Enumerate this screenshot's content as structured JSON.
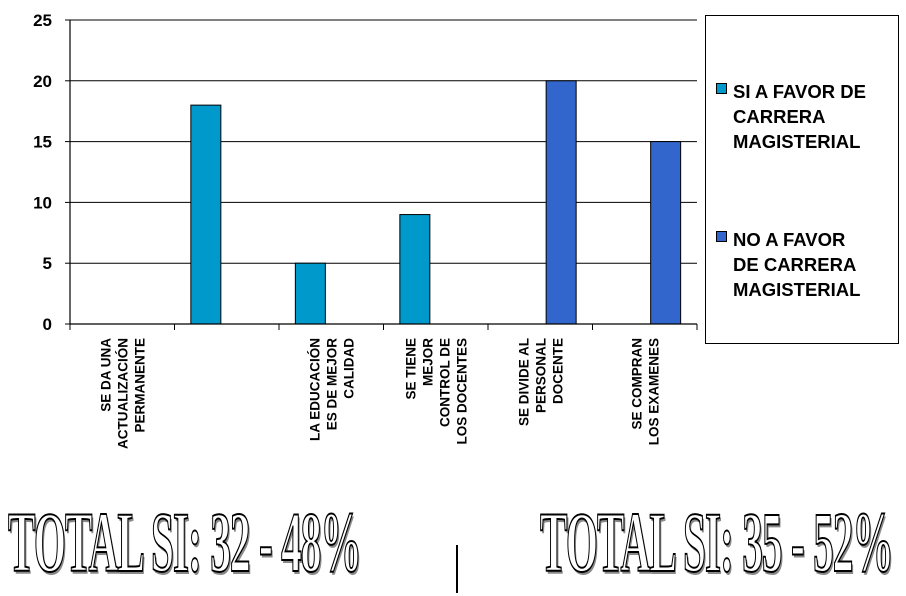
{
  "chart_data": {
    "type": "bar",
    "ylim": [
      0,
      25
    ],
    "yticks": [
      "0",
      "5",
      "10",
      "15",
      "20",
      "25"
    ],
    "categories": [
      [
        "SE DA UNA",
        "ACTUALIZACIÓN",
        "PERMANENTE"
      ],
      [],
      [
        "LA EDUCACIÓN",
        "ES DE MEJOR",
        "CALIDAD"
      ],
      [
        "SE TIENE",
        "MEJOR",
        "CONTROL DE",
        "LOS DOCENTES"
      ],
      [
        "SE DIVIDE AL",
        "PERSONAL",
        "DOCENTE"
      ],
      [
        "SE COMPRAN",
        "LOS EXAMENES"
      ]
    ],
    "series": [
      {
        "name": "SI A FAVOR DE CARRERA MAGISTERIAL",
        "color": "#0099cc",
        "values": [
          0,
          18,
          5,
          9,
          0,
          0
        ]
      },
      {
        "name": "NO A FAVOR DE CARRERA MAGISTERIAL",
        "color": "#3366cc",
        "values": [
          0,
          0,
          0,
          0,
          20,
          15
        ]
      }
    ],
    "legend": "right",
    "grid": true
  },
  "legend": {
    "items": [
      {
        "lines": [
          "SI A FAVOR DE",
          "CARRERA",
          "MAGISTERIAL"
        ],
        "color": "#0099cc"
      },
      {
        "lines": [
          "NO A FAVOR",
          "DE CARRERA",
          "MAGISTERIAL"
        ],
        "color": "#3366cc"
      }
    ]
  },
  "totals": {
    "left": "TOTAL SI: 32 - 48%",
    "right": "TOTAL SI: 35 - 52%"
  }
}
